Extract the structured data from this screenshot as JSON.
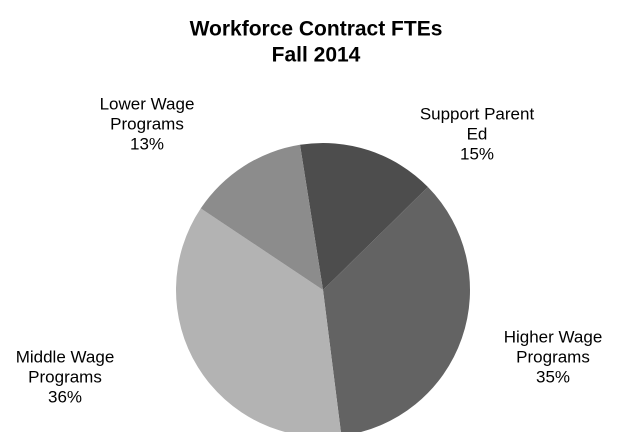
{
  "chart_data": {
    "type": "pie",
    "title": "Workforce Contract FTEs",
    "subtitle": "Fall 2014",
    "categories": [
      [
        "Support Parent",
        "Ed"
      ],
      [
        "Higher Wage",
        "Programs"
      ],
      [
        "Middle Wage",
        "Programs"
      ],
      [
        "Lower Wage",
        "Programs"
      ]
    ],
    "values": [
      15,
      35,
      36,
      13
    ],
    "value_labels": [
      "15%",
      "35%",
      "36%",
      "13%"
    ],
    "colors": [
      "#4d4d4d",
      "#636363",
      "#b3b3b3",
      "#8c8c8c"
    ]
  }
}
